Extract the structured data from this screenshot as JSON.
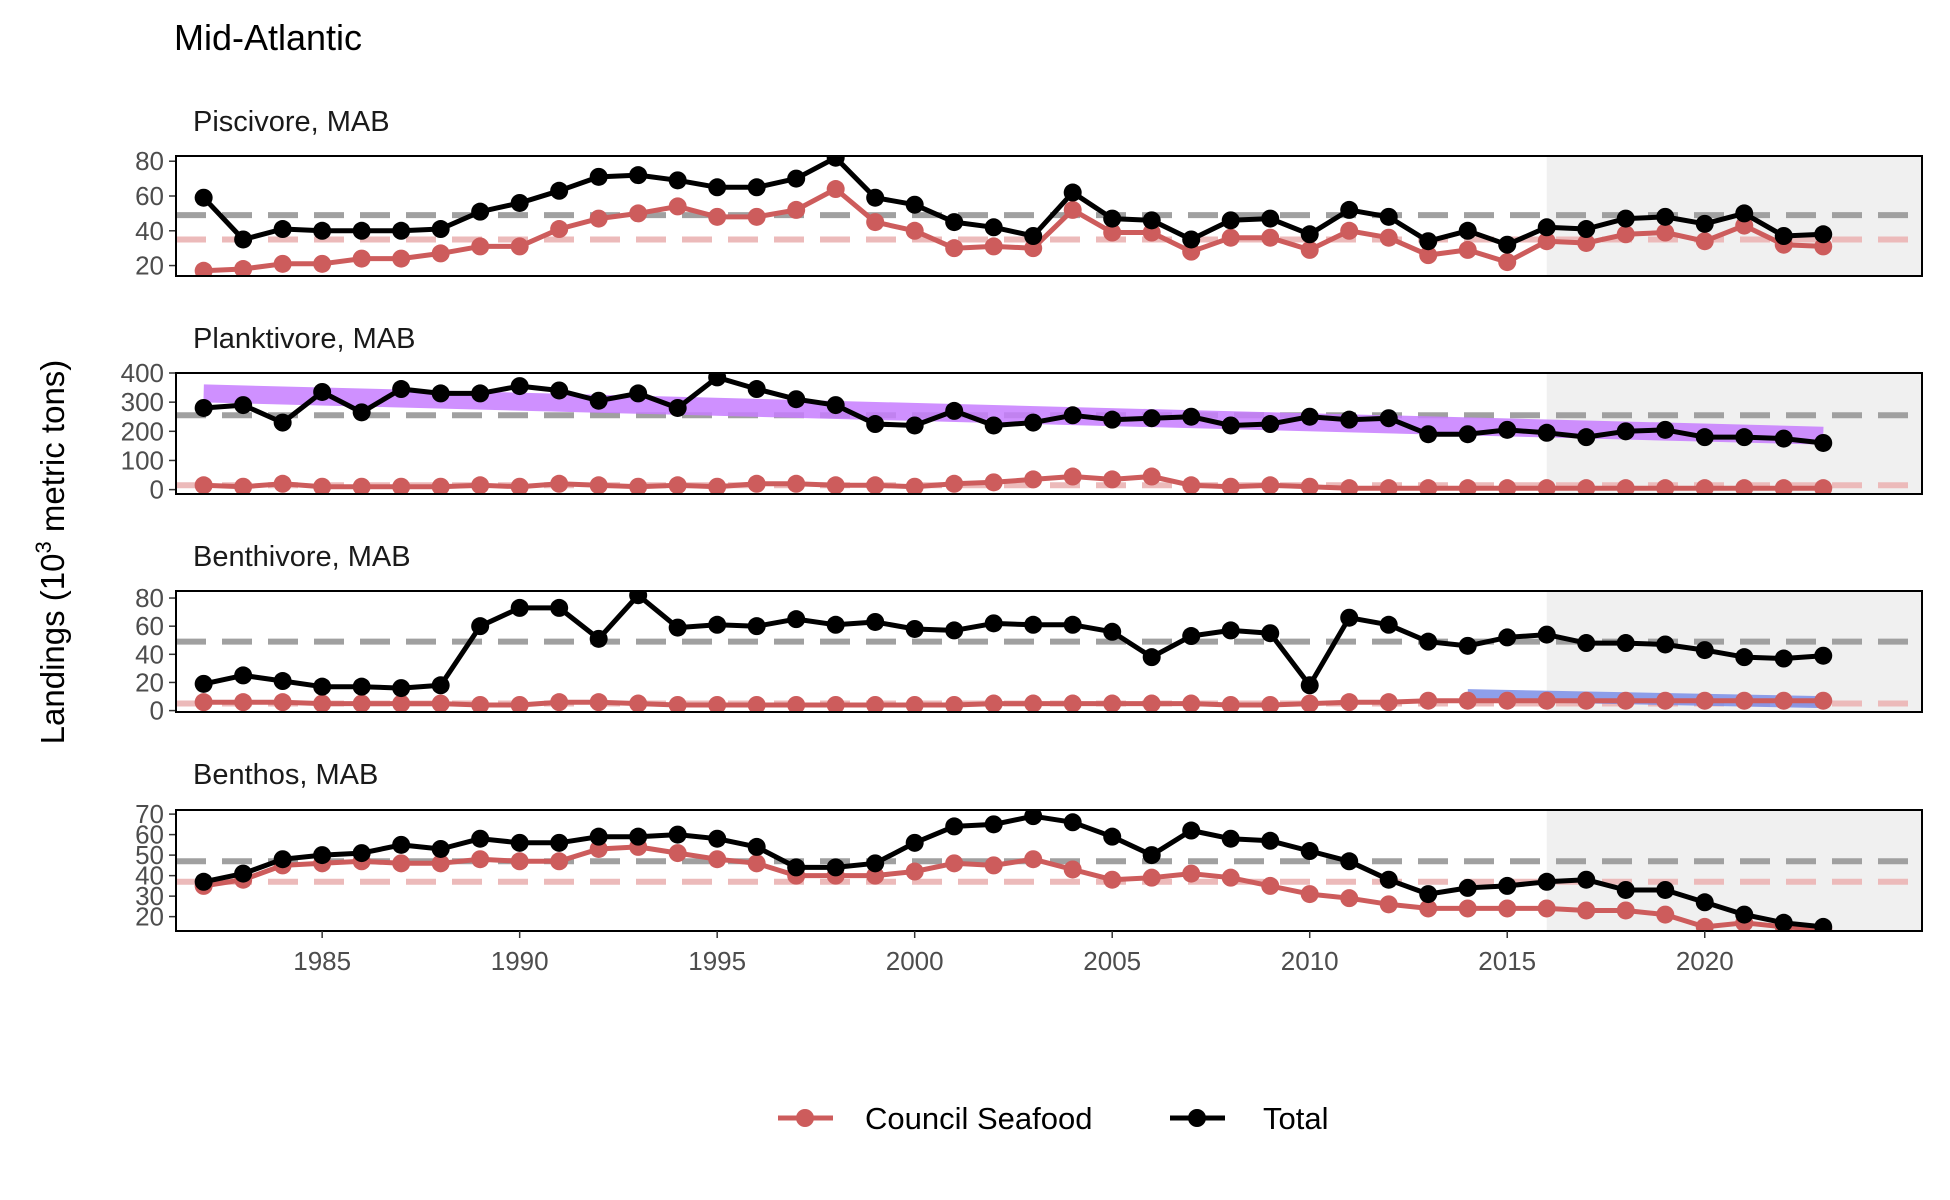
{
  "chart_data": {
    "type": "line",
    "title": "Mid-Atlantic",
    "ylabel": {
      "prefix": "Landings (10",
      "sup": "3",
      "suffix": " metric tons)"
    },
    "xlim": [
      1981.3,
      2025.5
    ],
    "x_ticks": [
      1985,
      1990,
      1995,
      2000,
      2005,
      2010,
      2015,
      2020
    ],
    "highlight_start": 2016,
    "years": [
      1982,
      1983,
      1984,
      1985,
      1986,
      1987,
      1988,
      1989,
      1990,
      1991,
      1992,
      1993,
      1994,
      1995,
      1996,
      1997,
      1998,
      1999,
      2000,
      2001,
      2002,
      2003,
      2004,
      2005,
      2006,
      2007,
      2008,
      2009,
      2010,
      2011,
      2012,
      2013,
      2014,
      2015,
      2016,
      2017,
      2018,
      2019,
      2020,
      2021,
      2022,
      2023
    ],
    "legend": [
      {
        "name": "Council Seafood",
        "color": "#cd5c5c"
      },
      {
        "name": "Total",
        "color": "#000000"
      }
    ],
    "colors": {
      "council": "#cd5c5c",
      "total": "#000000",
      "mean_total": "#a0a0a0",
      "mean_council": "#ecbaba",
      "trend_purple": "#c77dff",
      "trend_blue": "#7b8fe8",
      "highlight": "#f0f0f0"
    },
    "panels": [
      {
        "label": "Piscivore, MAB",
        "ylim": [
          14,
          83
        ],
        "y_ticks": [
          20,
          40,
          60,
          80
        ],
        "mean_total": 49,
        "mean_council": 35,
        "total": [
          59,
          35,
          41,
          40,
          40,
          40,
          41,
          51,
          56,
          63,
          71,
          72,
          69,
          65,
          65,
          70,
          82,
          59,
          55,
          45,
          42,
          37,
          62,
          47,
          46,
          35,
          46,
          47,
          38,
          52,
          48,
          34,
          40,
          32,
          42,
          41,
          47,
          48,
          44,
          50,
          37,
          38
        ],
        "council": [
          17,
          18,
          21,
          21,
          24,
          24,
          27,
          31,
          31,
          41,
          47,
          50,
          54,
          48,
          48,
          52,
          64,
          45,
          40,
          30,
          31,
          30,
          52,
          39,
          39,
          28,
          36,
          36,
          29,
          40,
          36,
          26,
          29,
          22,
          34,
          33,
          38,
          39,
          34,
          43,
          32,
          31
        ],
        "trend": null
      },
      {
        "label": "Planktivore, MAB",
        "ylim": [
          -15,
          400
        ],
        "y_ticks": [
          0,
          100,
          200,
          300,
          400
        ],
        "mean_total": 255,
        "mean_council": 15,
        "total": [
          280,
          290,
          230,
          335,
          265,
          345,
          330,
          330,
          355,
          340,
          305,
          330,
          280,
          385,
          345,
          310,
          290,
          225,
          220,
          270,
          220,
          230,
          255,
          240,
          245,
          250,
          220,
          225,
          250,
          240,
          245,
          190,
          190,
          205,
          195,
          180,
          200,
          205,
          180,
          180,
          175,
          160
        ],
        "council": [
          15,
          10,
          20,
          10,
          10,
          10,
          10,
          15,
          10,
          20,
          15,
          10,
          15,
          10,
          20,
          20,
          15,
          15,
          10,
          20,
          25,
          35,
          45,
          35,
          45,
          15,
          10,
          15,
          10,
          5,
          5,
          5,
          5,
          5,
          5,
          5,
          5,
          5,
          5,
          5,
          5,
          5
        ],
        "trend": {
          "color": "#c77dff",
          "from": [
            1982,
            330
          ],
          "to": [
            2023,
            185
          ],
          "width": 18
        }
      },
      {
        "label": "Benthivore, MAB",
        "ylim": [
          -1,
          85
        ],
        "y_ticks": [
          0,
          20,
          40,
          60,
          80
        ],
        "mean_total": 49,
        "mean_council": 5,
        "total": [
          19,
          25,
          21,
          17,
          17,
          16,
          18,
          60,
          73,
          73,
          51,
          82,
          59,
          61,
          60,
          65,
          61,
          63,
          58,
          57,
          62,
          61,
          61,
          56,
          38,
          53,
          57,
          55,
          18,
          66,
          61,
          49,
          46,
          52,
          54,
          48,
          48,
          47,
          43,
          38,
          37,
          39
        ],
        "council": [
          6,
          6,
          6,
          5,
          5,
          5,
          5,
          4,
          4,
          6,
          6,
          5,
          4,
          4,
          4,
          4,
          4,
          4,
          4,
          4,
          5,
          5,
          5,
          5,
          5,
          5,
          4,
          4,
          5,
          6,
          6,
          7,
          7,
          7,
          7,
          7,
          7,
          7,
          7,
          7,
          7,
          7
        ],
        "trend": {
          "color": "#7b8fe8",
          "from": [
            2014,
            11
          ],
          "to": [
            2023,
            6
          ],
          "width": 12
        }
      },
      {
        "label": "Benthos, MAB",
        "ylim": [
          13,
          72
        ],
        "y_ticks": [
          20,
          30,
          40,
          50,
          60,
          70
        ],
        "mean_total": 47,
        "mean_council": 37,
        "total": [
          37,
          41,
          48,
          50,
          51,
          55,
          53,
          58,
          56,
          56,
          59,
          59,
          60,
          58,
          54,
          44,
          44,
          46,
          56,
          64,
          65,
          69,
          66,
          59,
          50,
          62,
          58,
          57,
          52,
          47,
          38,
          31,
          34,
          35,
          37,
          38,
          33,
          33,
          27,
          21,
          17,
          15
        ],
        "council": [
          35,
          38,
          45,
          46,
          47,
          46,
          46,
          48,
          47,
          47,
          53,
          54,
          51,
          48,
          46,
          40,
          40,
          40,
          42,
          46,
          45,
          48,
          43,
          38,
          39,
          41,
          39,
          35,
          31,
          29,
          26,
          24,
          24,
          24,
          24,
          23,
          23,
          21,
          15,
          17,
          15,
          14
        ],
        "trend": null
      }
    ]
  }
}
